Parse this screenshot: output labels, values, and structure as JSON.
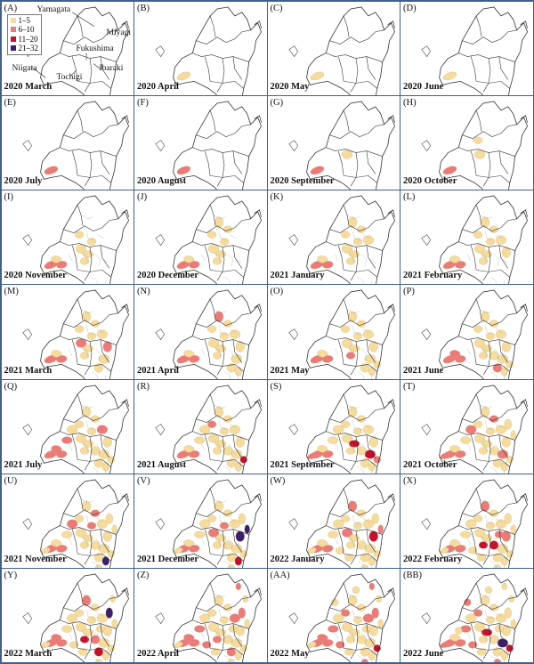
{
  "legend": {
    "items": [
      {
        "label": "1–5",
        "color": "#f5dc9c"
      },
      {
        "label": "6–10",
        "color": "#ec7a78"
      },
      {
        "label": "11–20",
        "color": "#c8102e"
      },
      {
        "label": "21–32",
        "color": "#3b1f6e"
      }
    ]
  },
  "prefectures": [
    "Yamagata",
    "Miyagi",
    "Fukushima",
    "Niigata",
    "Tochigi",
    "Ibaraki"
  ],
  "panels": [
    {
      "label": "(A)",
      "title": "2020 March"
    },
    {
      "label": "(B)",
      "title": "2020 April"
    },
    {
      "label": "(C)",
      "title": "2020 May"
    },
    {
      "label": "(D)",
      "title": "2020 June"
    },
    {
      "label": "(E)",
      "title": "2020 July"
    },
    {
      "label": "(F)",
      "title": "2020 August"
    },
    {
      "label": "(G)",
      "title": "2020 September"
    },
    {
      "label": "(H)",
      "title": "2020 October"
    },
    {
      "label": "(I)",
      "title": "2020 November"
    },
    {
      "label": "(J)",
      "title": "2020 December"
    },
    {
      "label": "(K)",
      "title": "2021 January"
    },
    {
      "label": "(L)",
      "title": "2021 February"
    },
    {
      "label": "(M)",
      "title": "2021 March"
    },
    {
      "label": "(N)",
      "title": "2021 April"
    },
    {
      "label": "(O)",
      "title": "2021 May"
    },
    {
      "label": "(P)",
      "title": "2021 June"
    },
    {
      "label": "(Q)",
      "title": "2021 July"
    },
    {
      "label": "(R)",
      "title": "2021 August"
    },
    {
      "label": "(S)",
      "title": "2021 September"
    },
    {
      "label": "(T)",
      "title": "2021 October"
    },
    {
      "label": "(U)",
      "title": "2021 November"
    },
    {
      "label": "(V)",
      "title": "2021 December"
    },
    {
      "label": "(W)",
      "title": "2022 January"
    },
    {
      "label": "(X)",
      "title": "2022 February"
    },
    {
      "label": "(Y)",
      "title": "2022 March"
    },
    {
      "label": "(Z)",
      "title": "2022 April"
    },
    {
      "label": "(AA)",
      "title": "2022 May"
    },
    {
      "label": "(BB)",
      "title": "2022 June"
    }
  ]
}
